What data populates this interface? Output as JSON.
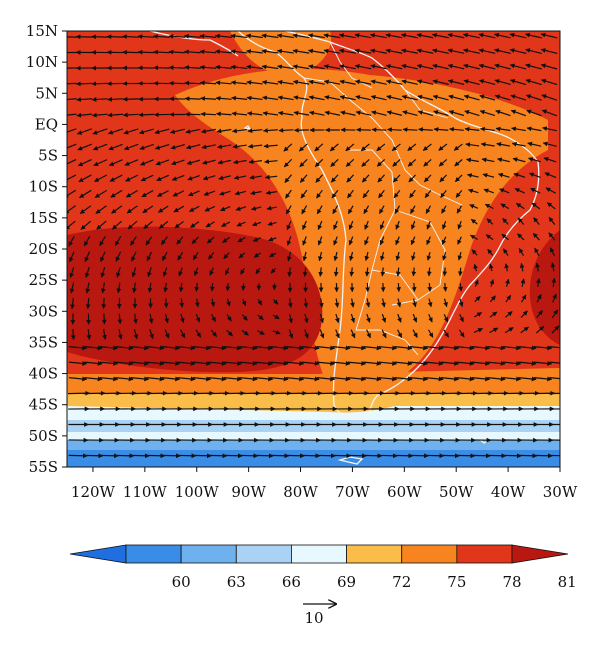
{
  "map": {
    "lat_labels": [
      "15N",
      "10N",
      "5N",
      "EQ",
      "5S",
      "10S",
      "15S",
      "20S",
      "25S",
      "30S",
      "35S",
      "40S",
      "45S",
      "50S",
      "55S"
    ],
    "lon_labels": [
      "120W",
      "110W",
      "100W",
      "90W",
      "80W",
      "70W",
      "60W",
      "50W",
      "40W",
      "30W"
    ],
    "lat_range": [
      -55,
      15
    ],
    "lon_range": [
      -125,
      -30
    ]
  },
  "colorbar": {
    "levels": [
      "60",
      "63",
      "66",
      "69",
      "72",
      "75",
      "78",
      "81"
    ],
    "colors": [
      "#1f6fe0",
      "#3a8de6",
      "#6fb0ee",
      "#a9d2f5",
      "#e8f8ff",
      "#fbbd4a",
      "#f7841e",
      "#e2361a",
      "#b81810"
    ],
    "extend": "both"
  },
  "reference_vector": {
    "label": "10"
  },
  "colors": {
    "deep_red": "#b81810",
    "red": "#e2361a",
    "orange": "#f7841e",
    "light_orange": "#fbbd4a",
    "pale_cyan": "#e8f8ff",
    "light_blue": "#a9d2f5",
    "mid_blue": "#6fb0ee",
    "blue": "#3a8de6",
    "coast": "#f4f4f4",
    "vector": "#111111"
  }
}
